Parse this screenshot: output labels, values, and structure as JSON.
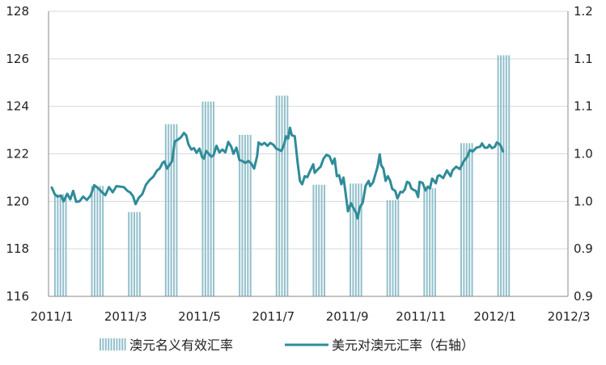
{
  "chart_data": {
    "type": "bar+line",
    "x_ticks": [
      "2011/1",
      "2011/3",
      "2011/5",
      "2011/7",
      "2011/9",
      "2011/11",
      "2012/1",
      "2012/3"
    ],
    "y_left": {
      "ticks": [
        "116",
        "118",
        "120",
        "122",
        "124",
        "126",
        "128"
      ],
      "lim": [
        116,
        128
      ]
    },
    "y_right": {
      "ticks": [
        "0.9",
        "0.9",
        "1.0",
        "1.0",
        "1.1",
        "1.1",
        "1.2"
      ],
      "lim": [
        0.9,
        1.2
      ]
    },
    "grid": "horizontal",
    "legend_position": "bottom",
    "colors": {
      "bar": "#93c0cc",
      "line": "#2f8c99",
      "grid": "#d9d9d9",
      "axis": "#888888"
    },
    "bar_series": {
      "name": "澳元名义有效汇率",
      "axis": "left",
      "points": [
        {
          "x": 0.25,
          "y": 120.3
        },
        {
          "x": 1.25,
          "y": 120.65
        },
        {
          "x": 2.25,
          "y": 119.55
        },
        {
          "x": 3.25,
          "y": 123.25
        },
        {
          "x": 4.25,
          "y": 124.2
        },
        {
          "x": 5.25,
          "y": 122.8
        },
        {
          "x": 6.25,
          "y": 124.45
        },
        {
          "x": 7.25,
          "y": 120.7
        },
        {
          "x": 8.25,
          "y": 120.75
        },
        {
          "x": 9.25,
          "y": 120.05
        },
        {
          "x": 10.25,
          "y": 120.55
        },
        {
          "x": 11.25,
          "y": 122.45
        },
        {
          "x": 12.25,
          "y": 126.15
        }
      ]
    },
    "line_series": {
      "name": "美元对澳元汇率（右轴）",
      "axis": "right",
      "points": [
        [
          0.0,
          1.0145
        ],
        [
          0.08,
          1.0075
        ],
        [
          0.15,
          1.005
        ],
        [
          0.25,
          1.006
        ],
        [
          0.32,
          1.0
        ],
        [
          0.42,
          1.008
        ],
        [
          0.5,
          1.002
        ],
        [
          0.58,
          1.011
        ],
        [
          0.66,
          0.9995
        ],
        [
          0.75,
          1.0
        ],
        [
          0.85,
          1.005
        ],
        [
          0.95,
          1.0015
        ],
        [
          1.05,
          1.006
        ],
        [
          1.15,
          1.017
        ],
        [
          1.25,
          1.014
        ],
        [
          1.35,
          1.01
        ],
        [
          1.45,
          1.0065
        ],
        [
          1.55,
          1.015
        ],
        [
          1.65,
          1.0095
        ],
        [
          1.75,
          1.016
        ],
        [
          1.85,
          1.0155
        ],
        [
          1.95,
          1.015
        ],
        [
          2.05,
          1.011
        ],
        [
          2.12,
          1.0095
        ],
        [
          2.2,
          1.0055
        ],
        [
          2.27,
          0.997
        ],
        [
          2.35,
          1.0035
        ],
        [
          2.45,
          1.0075
        ],
        [
          2.55,
          1.0175
        ],
        [
          2.65,
          1.0225
        ],
        [
          2.75,
          1.026
        ],
        [
          2.85,
          1.0325
        ],
        [
          2.92,
          1.0345
        ],
        [
          3.0,
          1.0405
        ],
        [
          3.05,
          1.042
        ],
        [
          3.12,
          1.0345
        ],
        [
          3.2,
          1.039
        ],
        [
          3.26,
          1.0425
        ],
        [
          3.33,
          1.063
        ],
        [
          3.42,
          1.065
        ],
        [
          3.5,
          1.0675
        ],
        [
          3.58,
          1.072
        ],
        [
          3.64,
          1.0695
        ],
        [
          3.7,
          1.06
        ],
        [
          3.78,
          1.0545
        ],
        [
          3.85,
          1.056
        ],
        [
          3.92,
          1.051
        ],
        [
          4.0,
          1.0555
        ],
        [
          4.07,
          1.0465
        ],
        [
          4.12,
          1.045
        ],
        [
          4.18,
          1.053
        ],
        [
          4.24,
          1.0505
        ],
        [
          4.32,
          1.047
        ],
        [
          4.38,
          1.0485
        ],
        [
          4.46,
          1.0585
        ],
        [
          4.54,
          1.0515
        ],
        [
          4.62,
          1.0545
        ],
        [
          4.7,
          1.0515
        ],
        [
          4.78,
          1.0625
        ],
        [
          4.86,
          1.0575
        ],
        [
          4.92,
          1.05
        ],
        [
          5.0,
          1.0565
        ],
        [
          5.08,
          1.0435
        ],
        [
          5.16,
          1.0425
        ],
        [
          5.24,
          1.0405
        ],
        [
          5.32,
          1.0425
        ],
        [
          5.4,
          1.04
        ],
        [
          5.48,
          1.0345
        ],
        [
          5.56,
          1.0475
        ],
        [
          5.6,
          1.062
        ],
        [
          5.68,
          1.0595
        ],
        [
          5.76,
          1.0615
        ],
        [
          5.84,
          1.0585
        ],
        [
          5.92,
          1.0615
        ],
        [
          6.0,
          1.0595
        ],
        [
          6.08,
          1.0555
        ],
        [
          6.14,
          1.0545
        ],
        [
          6.22,
          1.053
        ],
        [
          6.3,
          1.061
        ],
        [
          6.34,
          1.0685
        ],
        [
          6.4,
          1.066
        ],
        [
          6.45,
          1.0775
        ],
        [
          6.5,
          1.0695
        ],
        [
          6.58,
          1.0685
        ],
        [
          6.66,
          1.04
        ],
        [
          6.72,
          1.0215
        ],
        [
          6.78,
          1.018
        ],
        [
          6.85,
          1.0265
        ],
        [
          6.92,
          1.0255
        ],
        [
          7.0,
          1.0325
        ],
        [
          7.08,
          1.039
        ],
        [
          7.12,
          1.03
        ],
        [
          7.2,
          1.0335
        ],
        [
          7.28,
          1.0365
        ],
        [
          7.36,
          1.045
        ],
        [
          7.44,
          1.049
        ],
        [
          7.52,
          1.0475
        ],
        [
          7.6,
          1.0395
        ],
        [
          7.66,
          1.045
        ],
        [
          7.72,
          1.0265
        ],
        [
          7.78,
          1.0275
        ],
        [
          7.84,
          1.018
        ],
        [
          7.9,
          1.025
        ],
        [
          7.96,
          1.0075
        ],
        [
          8.02,
          0.9895
        ],
        [
          8.1,
          0.998
        ],
        [
          8.16,
          0.9935
        ],
        [
          8.24,
          0.988
        ],
        [
          8.28,
          0.982
        ],
        [
          8.34,
          0.9935
        ],
        [
          8.42,
          0.9985
        ],
        [
          8.5,
          1.0165
        ],
        [
          8.58,
          1.0215
        ],
        [
          8.62,
          1.016
        ],
        [
          8.7,
          1.02
        ],
        [
          8.76,
          1.028
        ],
        [
          8.82,
          1.036
        ],
        [
          8.88,
          1.0495
        ],
        [
          8.92,
          1.038
        ],
        [
          8.98,
          1.0345
        ],
        [
          9.04,
          1.0215
        ],
        [
          9.1,
          1.0265
        ],
        [
          9.16,
          1.022
        ],
        [
          9.22,
          1.013
        ],
        [
          9.3,
          1.011
        ],
        [
          9.36,
          1.003
        ],
        [
          9.44,
          1.01
        ],
        [
          9.5,
          1.0095
        ],
        [
          9.56,
          1.0125
        ],
        [
          9.62,
          1.0205
        ],
        [
          9.68,
          1.0195
        ],
        [
          9.74,
          1.0135
        ],
        [
          9.8,
          1.012
        ],
        [
          9.86,
          1.011
        ],
        [
          9.92,
          1.0045
        ],
        [
          9.96,
          1.0205
        ],
        [
          10.04,
          1.0195
        ],
        [
          10.12,
          1.0115
        ],
        [
          10.18,
          1.0155
        ],
        [
          10.24,
          1.0135
        ],
        [
          10.3,
          1.024
        ],
        [
          10.4,
          1.019
        ],
        [
          10.45,
          1.0265
        ],
        [
          10.5,
          1.0275
        ],
        [
          10.6,
          1.0245
        ],
        [
          10.7,
          1.0325
        ],
        [
          10.8,
          1.0265
        ],
        [
          10.85,
          1.0325
        ],
        [
          10.95,
          1.0365
        ],
        [
          11.05,
          1.034
        ],
        [
          11.15,
          1.042
        ],
        [
          11.25,
          1.047
        ],
        [
          11.32,
          1.054
        ],
        [
          11.4,
          1.0525
        ],
        [
          11.5,
          1.0565
        ],
        [
          11.6,
          1.0575
        ],
        [
          11.65,
          1.061
        ],
        [
          11.72,
          1.0565
        ],
        [
          11.8,
          1.0565
        ],
        [
          11.85,
          1.0595
        ],
        [
          11.92,
          1.056
        ],
        [
          12.0,
          1.0575
        ],
        [
          12.05,
          1.062
        ],
        [
          12.1,
          1.061
        ],
        [
          12.15,
          1.059
        ],
        [
          12.22,
          1.0525
        ]
      ]
    }
  }
}
